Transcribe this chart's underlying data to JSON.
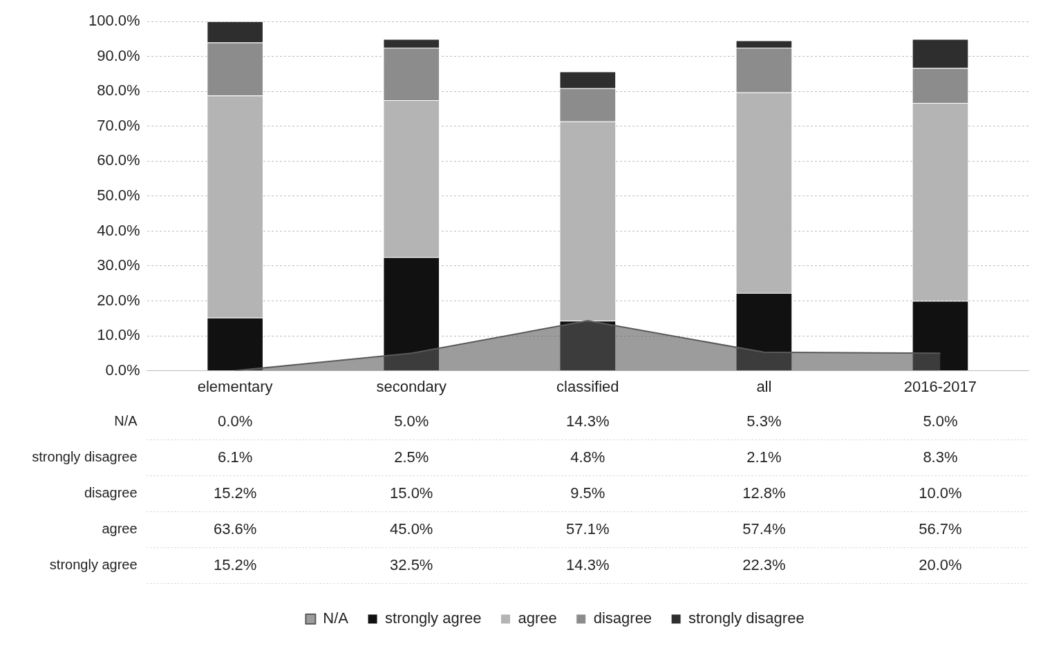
{
  "chart_data": {
    "type": "bar",
    "stacked": true,
    "categories": [
      "elementary",
      "secondary",
      "classified",
      "all",
      "2016-2017"
    ],
    "series": [
      {
        "name": "N/A",
        "type": "area",
        "color": "#5a5a5a",
        "values": [
          0.0,
          5.0,
          14.3,
          5.3,
          5.0
        ],
        "value_labels": [
          "0.0%",
          "5.0%",
          "14.3%",
          "5.3%",
          "5.0%"
        ]
      },
      {
        "name": "strongly agree",
        "color": "#111111",
        "values": [
          15.2,
          32.5,
          14.3,
          22.3,
          20.0
        ],
        "value_labels": [
          "15.2%",
          "32.5%",
          "14.3%",
          "22.3%",
          "20.0%"
        ]
      },
      {
        "name": "agree",
        "color": "#b4b4b4",
        "values": [
          63.6,
          45.0,
          57.1,
          57.4,
          56.7
        ],
        "value_labels": [
          "63.6%",
          "45.0%",
          "57.1%",
          "57.4%",
          "56.7%"
        ]
      },
      {
        "name": "disagree",
        "color": "#8c8c8c",
        "values": [
          15.2,
          15.0,
          9.5,
          12.8,
          10.0
        ],
        "value_labels": [
          "15.2%",
          "15.0%",
          "9.5%",
          "12.8%",
          "10.0%"
        ]
      },
      {
        "name": "strongly disagree",
        "color": "#2e2e2e",
        "values": [
          6.1,
          2.5,
          4.8,
          2.1,
          8.3
        ],
        "value_labels": [
          "6.1%",
          "2.5%",
          "4.8%",
          "2.1%",
          "8.3%"
        ]
      }
    ],
    "ylim": [
      0,
      100
    ],
    "yticks": [
      {
        "value": 0,
        "label": "0.0%"
      },
      {
        "value": 10,
        "label": "10.0%"
      },
      {
        "value": 20,
        "label": "20.0%"
      },
      {
        "value": 30,
        "label": "30.0%"
      },
      {
        "value": 40,
        "label": "40.0%"
      },
      {
        "value": 50,
        "label": "50.0%"
      },
      {
        "value": 60,
        "label": "60.0%"
      },
      {
        "value": 70,
        "label": "70.0%"
      },
      {
        "value": 80,
        "label": "80.0%"
      },
      {
        "value": 90,
        "label": "90.0%"
      },
      {
        "value": 100,
        "label": "100.0%"
      }
    ],
    "grid": "y",
    "legend": "bottom"
  }
}
